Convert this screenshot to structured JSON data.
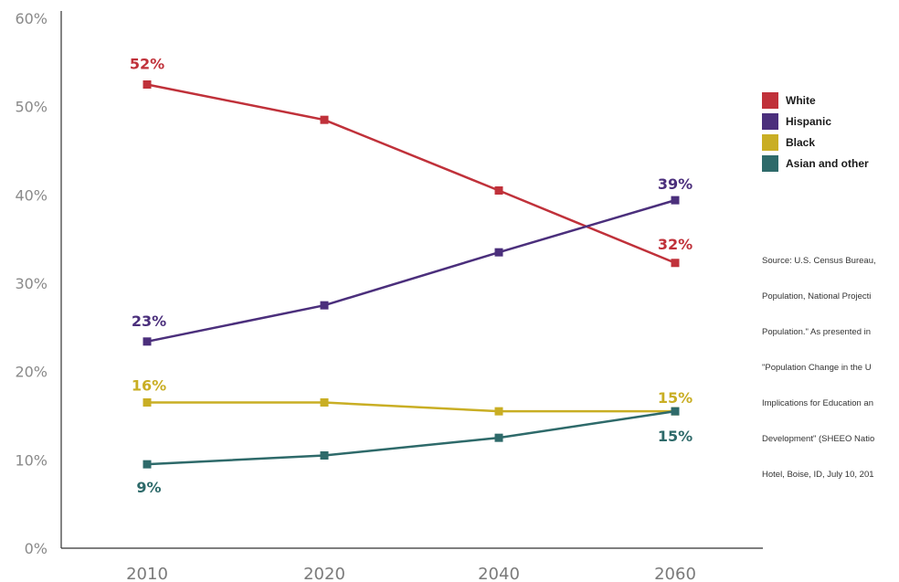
{
  "chart_data": {
    "type": "line",
    "categories": [
      "2010",
      "2020",
      "2040",
      "2060"
    ],
    "ylim": [
      0,
      60
    ],
    "yticks": [
      "0%",
      "10%",
      "20%",
      "30%",
      "40%",
      "50%",
      "60%"
    ],
    "grid": false,
    "legend_position": "right",
    "series": [
      {
        "name": "White",
        "color": "#c0313a",
        "values": [
          52.5,
          48.5,
          40.5,
          32.3
        ],
        "labels": [
          {
            "index": 0,
            "text": "52%"
          },
          {
            "index": 3,
            "text": "32%"
          }
        ]
      },
      {
        "name": "Hispanic",
        "color": "#4b2f7c",
        "values": [
          23.4,
          27.5,
          33.5,
          39.4
        ],
        "labels": [
          {
            "index": 0,
            "text": "23%"
          },
          {
            "index": 3,
            "text": "39%"
          }
        ]
      },
      {
        "name": "Black",
        "color": "#c9ae24",
        "values": [
          16.5,
          16.5,
          15.5,
          15.5
        ],
        "labels": [
          {
            "index": 0,
            "text": "16%"
          },
          {
            "index": 3,
            "text": "15%"
          }
        ]
      },
      {
        "name": "Asian and other",
        "color": "#2e6a6a",
        "values": [
          9.5,
          10.5,
          12.5,
          15.5
        ],
        "labels": [
          {
            "index": 0,
            "text": "9%"
          },
          {
            "index": 3,
            "text": "15%"
          }
        ]
      }
    ]
  },
  "legend": {
    "items": [
      {
        "label": "White",
        "color": "#c0313a"
      },
      {
        "label": "Hispanic",
        "color": "#4b2f7c"
      },
      {
        "label": "Black",
        "color": "#c9ae24"
      },
      {
        "label": "Asian and other",
        "color": "#2e6a6a"
      }
    ]
  },
  "source_lines": [
    "Source: U.S. Census Bureau,",
    "Population, National Projecti",
    "Population.\" As presented in",
    "\"Population Change in the U",
    "Implications for Education an",
    "Development\" (SHEEO Natio",
    "Hotel, Boise, ID, July 10, 201"
  ]
}
